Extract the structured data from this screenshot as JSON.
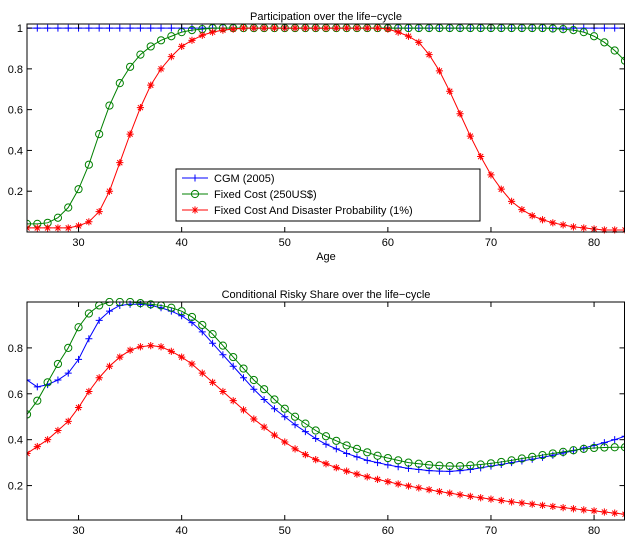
{
  "chart_data": [
    {
      "type": "line",
      "title": "Participation over the life−cycle",
      "xlabel": "Age",
      "ylabel": "",
      "xlim": [
        25,
        83
      ],
      "ylim": [
        0,
        1.02
      ],
      "xticks": [
        30,
        40,
        50,
        60,
        70,
        80
      ],
      "yticks": [
        0.2,
        0.4,
        0.6,
        0.8,
        1
      ],
      "ytick_labels": [
        "0.2",
        "0.4",
        "0.6",
        "0.8",
        "1"
      ],
      "grid": false,
      "legend_position": "lower-center",
      "series": [
        {
          "name": "CGM (2005)",
          "color": "#0000ff",
          "marker": "plus",
          "x": [
            25,
            26,
            27,
            28,
            29,
            30,
            31,
            32,
            33,
            34,
            35,
            36,
            37,
            38,
            39,
            40,
            41,
            42,
            43,
            44,
            45,
            46,
            47,
            48,
            49,
            50,
            51,
            52,
            53,
            54,
            55,
            56,
            57,
            58,
            59,
            60,
            61,
            62,
            63,
            64,
            65,
            66,
            67,
            68,
            69,
            70,
            71,
            72,
            73,
            74,
            75,
            76,
            77,
            78,
            79,
            80,
            81,
            82,
            83
          ],
          "y": [
            1,
            1,
            1,
            1,
            1,
            1,
            1,
            1,
            1,
            1,
            1,
            1,
            1,
            1,
            1,
            1,
            1,
            1,
            1,
            1,
            1,
            1,
            1,
            1,
            1,
            1,
            1,
            1,
            1,
            1,
            1,
            1,
            1,
            1,
            1,
            1,
            1,
            1,
            1,
            1,
            1,
            1,
            1,
            1,
            1,
            1,
            1,
            1,
            1,
            1,
            1,
            1,
            1,
            1,
            1,
            1,
            1,
            1,
            1
          ]
        },
        {
          "name": "Fixed Cost (250US$)",
          "color": "#008000",
          "marker": "circle",
          "x": [
            25,
            26,
            27,
            28,
            29,
            30,
            31,
            32,
            33,
            34,
            35,
            36,
            37,
            38,
            39,
            40,
            41,
            42,
            43,
            44,
            45,
            46,
            47,
            48,
            49,
            50,
            51,
            52,
            53,
            54,
            55,
            56,
            57,
            58,
            59,
            60,
            61,
            62,
            63,
            64,
            65,
            66,
            67,
            68,
            69,
            70,
            71,
            72,
            73,
            74,
            75,
            76,
            77,
            78,
            79,
            80,
            81,
            82,
            83
          ],
          "y": [
            0.04,
            0.04,
            0.045,
            0.07,
            0.12,
            0.21,
            0.33,
            0.48,
            0.62,
            0.73,
            0.81,
            0.87,
            0.91,
            0.94,
            0.96,
            0.98,
            0.99,
            0.995,
            1,
            1,
            1,
            1,
            1,
            1,
            1,
            1,
            1,
            1,
            1,
            1,
            1,
            1,
            1,
            1,
            1,
            1,
            1,
            1,
            1,
            1,
            1,
            1,
            1,
            1,
            1,
            1,
            1,
            1,
            1,
            1,
            1,
            0.998,
            0.995,
            0.99,
            0.98,
            0.96,
            0.93,
            0.89,
            0.84
          ]
        },
        {
          "name": "Fixed Cost And Disaster Probability (1%)",
          "color": "#ff0000",
          "marker": "star",
          "x": [
            25,
            26,
            27,
            28,
            29,
            30,
            31,
            32,
            33,
            34,
            35,
            36,
            37,
            38,
            39,
            40,
            41,
            42,
            43,
            44,
            45,
            46,
            47,
            48,
            49,
            50,
            51,
            52,
            53,
            54,
            55,
            56,
            57,
            58,
            59,
            60,
            61,
            62,
            63,
            64,
            65,
            66,
            67,
            68,
            69,
            70,
            71,
            72,
            73,
            74,
            75,
            76,
            77,
            78,
            79,
            80,
            81,
            82,
            83
          ],
          "y": [
            0.02,
            0.02,
            0.02,
            0.02,
            0.02,
            0.03,
            0.05,
            0.1,
            0.2,
            0.34,
            0.48,
            0.61,
            0.72,
            0.8,
            0.86,
            0.91,
            0.94,
            0.965,
            0.98,
            0.99,
            0.995,
            1,
            1,
            1,
            1,
            1,
            1,
            1,
            1,
            1,
            1,
            1,
            1,
            1,
            1,
            0.995,
            0.98,
            0.96,
            0.93,
            0.87,
            0.79,
            0.69,
            0.58,
            0.47,
            0.37,
            0.28,
            0.21,
            0.15,
            0.11,
            0.08,
            0.06,
            0.045,
            0.035,
            0.025,
            0.02,
            0.015,
            0.01,
            0.01,
            0.01
          ]
        }
      ]
    },
    {
      "type": "line",
      "title": "Conditional Risky Share over the life−cycle",
      "xlabel": "Age",
      "ylabel": "",
      "xlim": [
        25,
        83
      ],
      "ylim": [
        0.05,
        1.0
      ],
      "xticks": [
        30,
        40,
        50,
        60,
        70,
        80
      ],
      "yticks": [
        0.2,
        0.4,
        0.6,
        0.8
      ],
      "ytick_labels": [
        "0.2",
        "0.4",
        "0.6",
        "0.8"
      ],
      "grid": false,
      "series": [
        {
          "name": "CGM (2005)",
          "color": "#0000ff",
          "marker": "plus",
          "x": [
            25,
            26,
            27,
            28,
            29,
            30,
            31,
            32,
            33,
            34,
            35,
            36,
            37,
            38,
            39,
            40,
            41,
            42,
            43,
            44,
            45,
            46,
            47,
            48,
            49,
            50,
            51,
            52,
            53,
            54,
            55,
            56,
            57,
            58,
            59,
            60,
            61,
            62,
            63,
            64,
            65,
            66,
            67,
            68,
            69,
            70,
            71,
            72,
            73,
            74,
            75,
            76,
            77,
            78,
            79,
            80,
            81,
            82,
            83
          ],
          "y": [
            0.66,
            0.63,
            0.64,
            0.66,
            0.69,
            0.75,
            0.84,
            0.92,
            0.96,
            0.985,
            0.99,
            0.99,
            0.985,
            0.975,
            0.96,
            0.94,
            0.91,
            0.87,
            0.82,
            0.77,
            0.72,
            0.67,
            0.62,
            0.575,
            0.535,
            0.5,
            0.465,
            0.435,
            0.405,
            0.38,
            0.36,
            0.34,
            0.325,
            0.31,
            0.3,
            0.29,
            0.282,
            0.275,
            0.27,
            0.265,
            0.263,
            0.262,
            0.265,
            0.27,
            0.277,
            0.285,
            0.292,
            0.3,
            0.307,
            0.315,
            0.323,
            0.332,
            0.342,
            0.352,
            0.363,
            0.375,
            0.387,
            0.4,
            0.415
          ]
        },
        {
          "name": "Fixed Cost (250US$)",
          "color": "#008000",
          "marker": "circle",
          "x": [
            25,
            26,
            27,
            28,
            29,
            30,
            31,
            32,
            33,
            34,
            35,
            36,
            37,
            38,
            39,
            40,
            41,
            42,
            43,
            44,
            45,
            46,
            47,
            48,
            49,
            50,
            51,
            52,
            53,
            54,
            55,
            56,
            57,
            58,
            59,
            60,
            61,
            62,
            63,
            64,
            65,
            66,
            67,
            68,
            69,
            70,
            71,
            72,
            73,
            74,
            75,
            76,
            77,
            78,
            79,
            80,
            81,
            82,
            83
          ],
          "y": [
            0.51,
            0.57,
            0.65,
            0.73,
            0.8,
            0.89,
            0.95,
            0.985,
            1.0,
            1.0,
            1.0,
            0.995,
            0.99,
            0.985,
            0.975,
            0.96,
            0.935,
            0.9,
            0.86,
            0.81,
            0.76,
            0.71,
            0.66,
            0.62,
            0.575,
            0.535,
            0.5,
            0.47,
            0.44,
            0.415,
            0.395,
            0.375,
            0.36,
            0.345,
            0.33,
            0.32,
            0.31,
            0.3,
            0.295,
            0.29,
            0.287,
            0.285,
            0.285,
            0.288,
            0.292,
            0.297,
            0.303,
            0.31,
            0.318,
            0.325,
            0.333,
            0.34,
            0.347,
            0.354,
            0.36,
            0.364,
            0.366,
            0.367,
            0.367
          ]
        },
        {
          "name": "Fixed Cost And Disaster Probability (1%)",
          "color": "#ff0000",
          "marker": "star",
          "x": [
            25,
            26,
            27,
            28,
            29,
            30,
            31,
            32,
            33,
            34,
            35,
            36,
            37,
            38,
            39,
            40,
            41,
            42,
            43,
            44,
            45,
            46,
            47,
            48,
            49,
            50,
            51,
            52,
            53,
            54,
            55,
            56,
            57,
            58,
            59,
            60,
            61,
            62,
            63,
            64,
            65,
            66,
            67,
            68,
            69,
            70,
            71,
            72,
            73,
            74,
            75,
            76,
            77,
            78,
            79,
            80,
            81,
            82,
            83
          ],
          "y": [
            0.34,
            0.37,
            0.4,
            0.44,
            0.48,
            0.54,
            0.61,
            0.67,
            0.72,
            0.76,
            0.79,
            0.805,
            0.81,
            0.805,
            0.785,
            0.76,
            0.73,
            0.69,
            0.65,
            0.61,
            0.57,
            0.53,
            0.49,
            0.455,
            0.42,
            0.39,
            0.36,
            0.335,
            0.313,
            0.295,
            0.278,
            0.263,
            0.25,
            0.238,
            0.227,
            0.217,
            0.207,
            0.198,
            0.19,
            0.182,
            0.174,
            0.167,
            0.16,
            0.153,
            0.147,
            0.141,
            0.135,
            0.129,
            0.124,
            0.119,
            0.114,
            0.109,
            0.104,
            0.099,
            0.094,
            0.09,
            0.085,
            0.08,
            0.075
          ]
        }
      ]
    }
  ]
}
